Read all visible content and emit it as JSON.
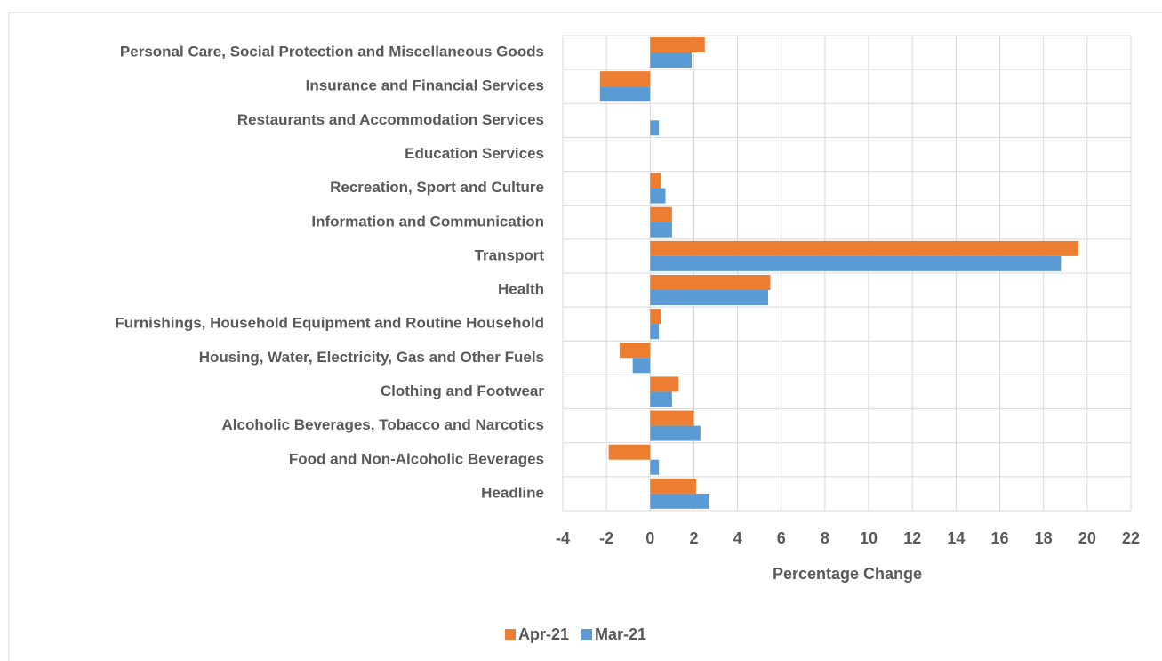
{
  "chart_data": {
    "type": "hbar",
    "xlabel": "Percentage Change",
    "categories": [
      "Personal Care, Social Protection and Miscellaneous Goods",
      "Insurance and Financial Services",
      "Restaurants and Accommodation Services",
      "Education Services",
      "Recreation, Sport and Culture",
      "Information and Communication",
      "Transport",
      "Health",
      "Furnishings, Household Equipment and Routine Household",
      "Housing, Water, Electricity, Gas and Other Fuels",
      "Clothing and Footwear",
      "Alcoholic Beverages, Tobacco and Narcotics",
      "Food and Non-Alcoholic Beverages",
      "Headline"
    ],
    "series": [
      {
        "name": "Apr-21",
        "color": "#ed7d31",
        "values": [
          2.5,
          -2.3,
          0,
          0,
          0.5,
          1.0,
          19.6,
          5.5,
          0.5,
          -1.4,
          1.3,
          2.0,
          -1.9,
          2.1
        ]
      },
      {
        "name": "Mar-21",
        "color": "#5b9bd5",
        "values": [
          1.9,
          -2.3,
          0.4,
          0,
          0.7,
          1.0,
          18.8,
          5.4,
          0.4,
          -0.8,
          1.0,
          2.3,
          0.4,
          2.7
        ]
      }
    ],
    "xlim": [
      -4,
      22
    ],
    "xticks": [
      -4,
      -2,
      0,
      2,
      4,
      6,
      8,
      10,
      12,
      14,
      16,
      18,
      20,
      22
    ],
    "grid": true,
    "legend": "bottom"
  }
}
